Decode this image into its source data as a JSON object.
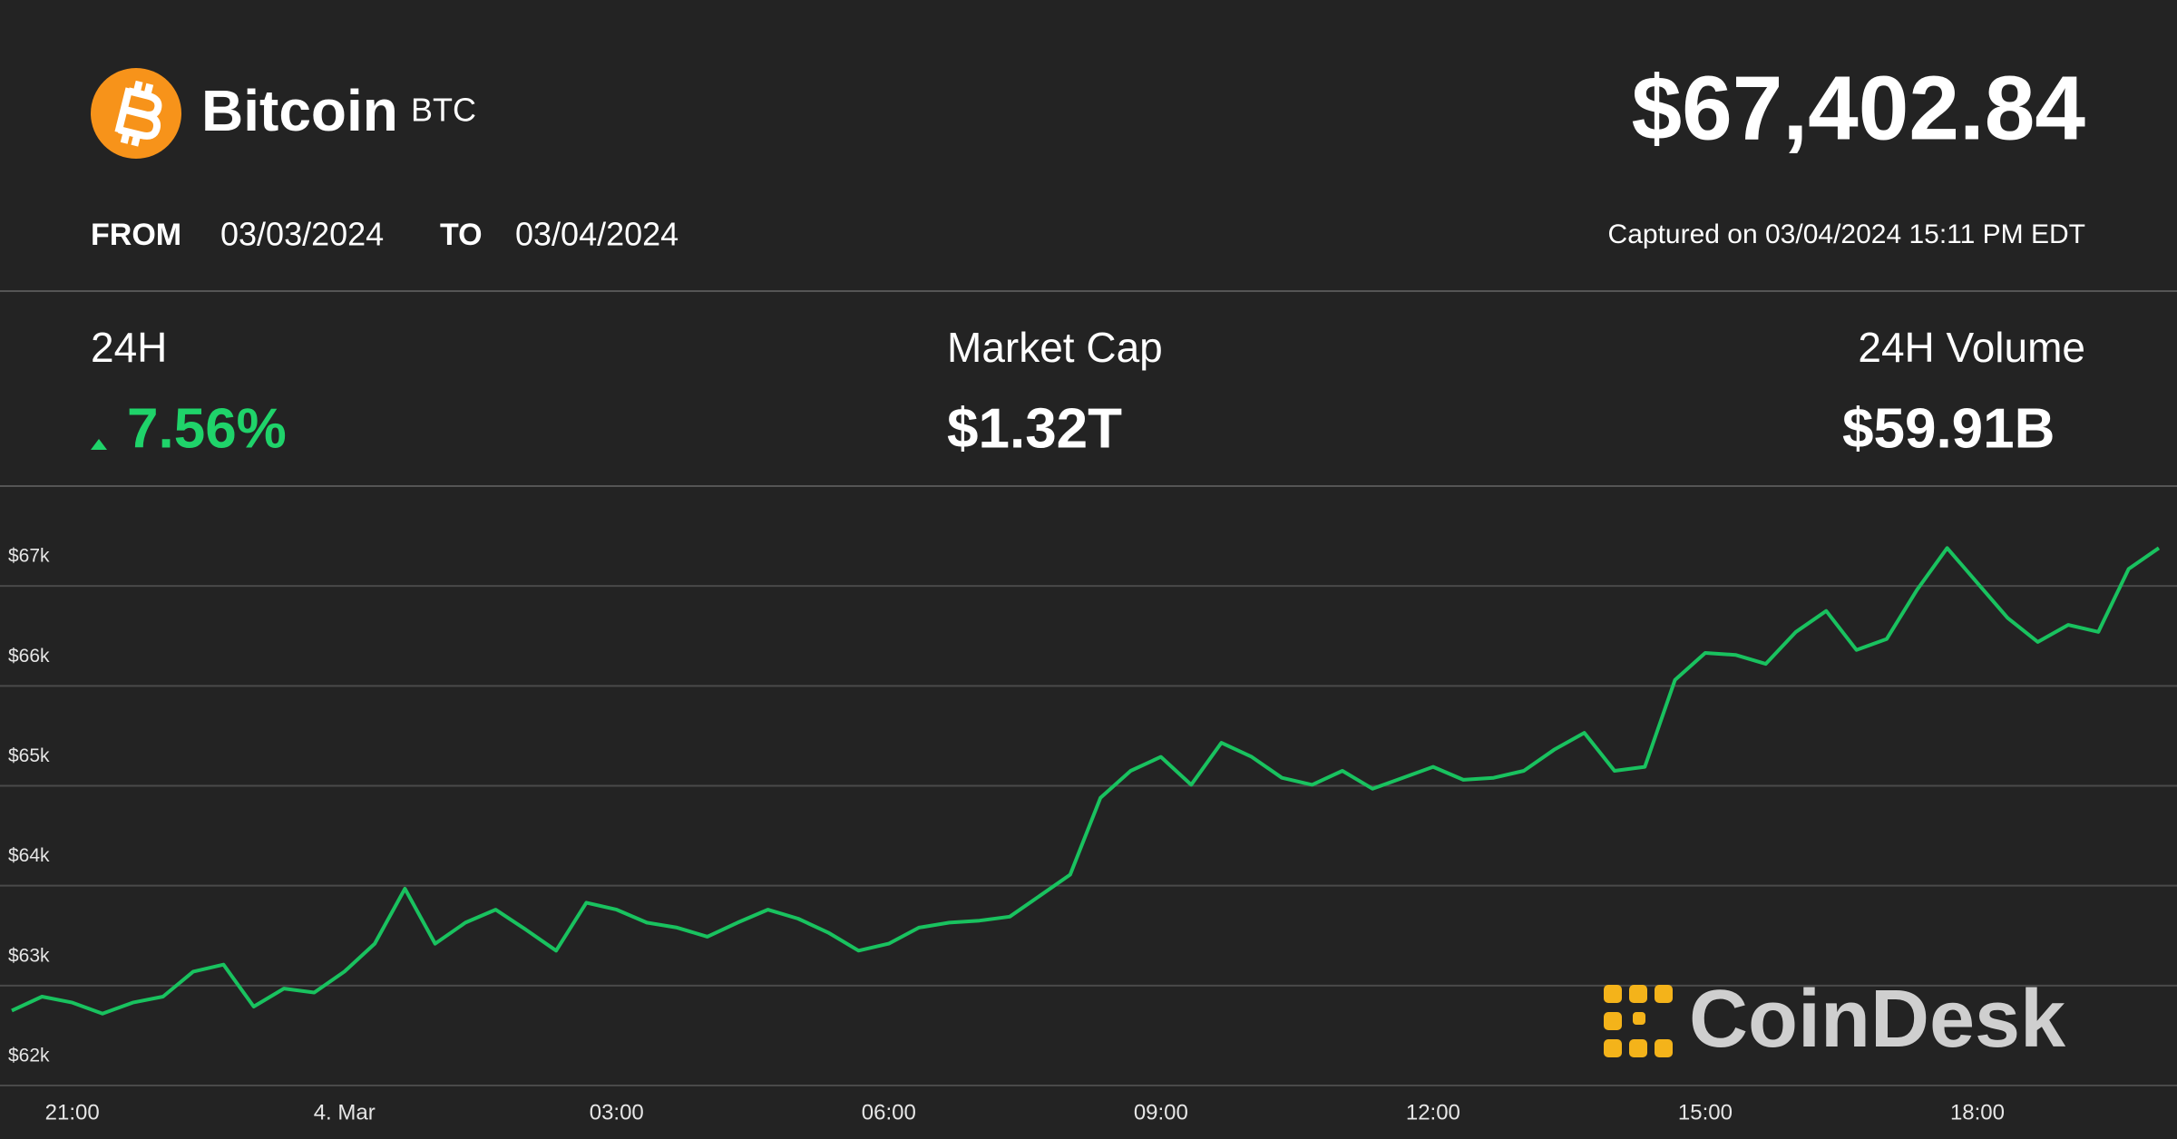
{
  "header": {
    "name": "Bitcoin",
    "symbol": "BTC",
    "price": "$67,402.84",
    "from_label": "FROM",
    "from_date": "03/03/2024",
    "to_label": "TO",
    "to_date": "03/04/2024",
    "captured": "Captured on 03/04/2024 15:11 PM EDT"
  },
  "stats": [
    {
      "label": "24H",
      "value": "7.56%"
    },
    {
      "label": "Market Cap",
      "value": "$1.32T"
    },
    {
      "label": "24H Volume",
      "value": "$59.91B"
    }
  ],
  "brand": "CoinDesk",
  "chart_data": {
    "type": "line",
    "color": "#19c25f",
    "grid": true,
    "x": [
      "20:20",
      "20:40",
      "21:00",
      "21:20",
      "21:40",
      "22:00",
      "22:20",
      "22:40",
      "23:00",
      "23:20",
      "23:40",
      "00:00",
      "00:20",
      "00:40",
      "01:00",
      "01:20",
      "01:40",
      "02:00",
      "02:20",
      "02:40",
      "03:00",
      "03:20",
      "03:40",
      "04:00",
      "04:20",
      "04:40",
      "05:00",
      "05:20",
      "05:40",
      "06:00",
      "06:20",
      "06:40",
      "07:00",
      "07:20",
      "07:40",
      "08:00",
      "08:20",
      "08:40",
      "09:00",
      "09:20",
      "09:40",
      "10:00",
      "10:20",
      "10:40",
      "11:00",
      "11:20",
      "11:40",
      "12:00",
      "12:20",
      "12:40",
      "13:00",
      "13:20",
      "13:40",
      "14:00",
      "14:20",
      "14:40",
      "15:00",
      "15:20",
      "15:40",
      "16:00",
      "16:20",
      "16:40",
      "17:00",
      "17:20",
      "17:40",
      "18:00",
      "18:20",
      "18:40",
      "19:00",
      "19:20",
      "19:40",
      "20:00"
    ],
    "values": [
      62750,
      62890,
      62830,
      62720,
      62830,
      62890,
      63140,
      63210,
      62790,
      62970,
      62930,
      63140,
      63420,
      63970,
      63420,
      63630,
      63760,
      63560,
      63350,
      63830,
      63760,
      63630,
      63580,
      63490,
      63630,
      63760,
      63670,
      63530,
      63350,
      63420,
      63580,
      63630,
      63650,
      63690,
      63900,
      64110,
      64880,
      65150,
      65290,
      65010,
      65430,
      65290,
      65080,
      65010,
      65150,
      64970,
      65080,
      65190,
      65060,
      65080,
      65150,
      65360,
      65530,
      65150,
      65190,
      66060,
      66330,
      66310,
      66220,
      66540,
      66750,
      66360,
      66470,
      66960,
      67380,
      67030,
      66680,
      66440,
      66610,
      66540,
      67170,
      67380
    ],
    "ylim": [
      62000,
      68000
    ],
    "yticks": [
      {
        "value": 62000,
        "label": "$62k"
      },
      {
        "value": 63000,
        "label": "$63k"
      },
      {
        "value": 64000,
        "label": "$64k"
      },
      {
        "value": 65000,
        "label": "$65k"
      },
      {
        "value": 66000,
        "label": "$66k"
      },
      {
        "value": 67000,
        "label": "$67k"
      }
    ],
    "xticks": [
      "21:00",
      {
        "value": "00:00",
        "label": "4. Mar"
      },
      "03:00",
      "06:00",
      "09:00",
      "12:00",
      "15:00",
      "18:00"
    ]
  }
}
